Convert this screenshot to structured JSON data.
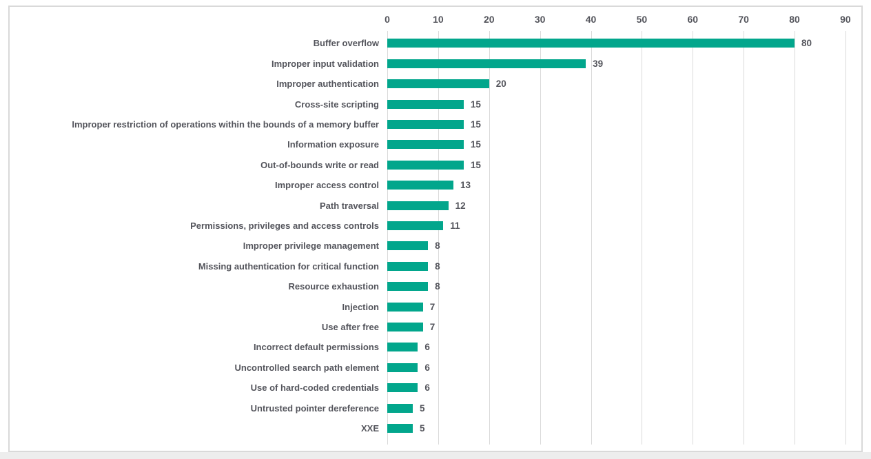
{
  "chart_data": {
    "type": "bar",
    "orientation": "horizontal",
    "title": "",
    "xlabel": "",
    "ylabel": "",
    "categories": [
      "Buffer overflow",
      "Improper input validation",
      "Improper authentication",
      "Cross-site scripting",
      "Improper restriction of operations  within the bounds of a memory buffer",
      "Information exposure",
      "Out-of-bounds write or read",
      "Improper access control",
      "Path traversal",
      "Permissions, privileges and access controls",
      "Improper privilege management",
      "Missing authentication for critical function",
      "Resource exhaustion",
      "Injection",
      "Use after free",
      "Incorrect default permissions",
      "Uncontrolled search path element",
      "Use of hard-coded credentials",
      "Untrusted pointer dereference",
      "XXE"
    ],
    "values": [
      80,
      39,
      20,
      15,
      15,
      15,
      15,
      13,
      12,
      11,
      8,
      8,
      8,
      7,
      7,
      6,
      6,
      6,
      5,
      5
    ],
    "xlim": [
      0,
      90
    ],
    "xticks": [
      0,
      10,
      20,
      30,
      40,
      50,
      60,
      70,
      80,
      90
    ],
    "axis_position": "top",
    "grid": true,
    "legend": false,
    "data_labels": true,
    "colors": {
      "bar": "#02a68c",
      "gridline": "#d9d9d9",
      "text": "#54555c",
      "frame_border": "#d9d9d9",
      "background": "#ffffff",
      "outer_strip": "#ededed"
    }
  }
}
